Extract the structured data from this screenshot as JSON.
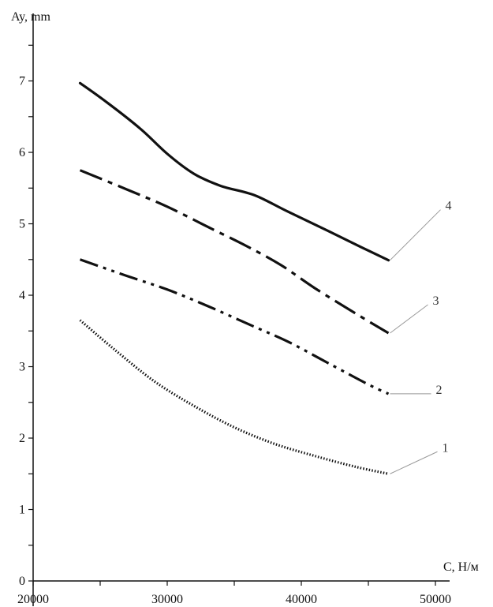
{
  "chart_data": {
    "type": "line",
    "title": "",
    "xlabel": "C, Н/м",
    "ylabel": "Ay, mm",
    "xlim": [
      20000,
      50000
    ],
    "ylim": [
      0,
      7.5
    ],
    "x_ticks": [
      20000,
      30000,
      40000,
      50000
    ],
    "x_tick_labels": [
      "20000",
      "30000",
      "40000",
      "50000"
    ],
    "y_ticks": [
      0,
      1,
      2,
      3,
      4,
      5,
      6,
      7
    ],
    "y_tick_labels": [
      "0",
      "1",
      "2",
      "3",
      "4",
      "5",
      "6",
      "7"
    ],
    "grid": false,
    "legend": "none",
    "series": [
      {
        "name": "1",
        "style": "dotted",
        "x": [
          23500,
          26000,
          29000,
          32000,
          35000,
          38000,
          41000,
          44000,
          46500
        ],
        "y": [
          3.65,
          3.25,
          2.8,
          2.45,
          2.15,
          1.92,
          1.75,
          1.6,
          1.5
        ]
      },
      {
        "name": "2",
        "style": "dash-dot-dot",
        "x": [
          23500,
          27000,
          30000,
          33000,
          36000,
          39000,
          42000,
          45000,
          46500
        ],
        "y": [
          4.5,
          4.27,
          4.08,
          3.85,
          3.6,
          3.35,
          3.05,
          2.75,
          2.62
        ]
      },
      {
        "name": "3",
        "style": "dash-dot",
        "x": [
          23500,
          27000,
          30000,
          33000,
          36000,
          38500,
          41000,
          44000,
          46500
        ],
        "y": [
          5.75,
          5.48,
          5.24,
          4.96,
          4.68,
          4.42,
          4.1,
          3.75,
          3.47
        ]
      },
      {
        "name": "4",
        "style": "solid",
        "x": [
          23500,
          25500,
          28000,
          30000,
          32000,
          34000,
          36500,
          39000,
          42000,
          44500,
          46500
        ],
        "y": [
          6.97,
          6.7,
          6.33,
          5.98,
          5.7,
          5.53,
          5.4,
          5.17,
          4.9,
          4.67,
          4.49
        ]
      }
    ],
    "colors": {
      "line": "#111111",
      "axis": "#111111",
      "leader": "#999999"
    }
  }
}
